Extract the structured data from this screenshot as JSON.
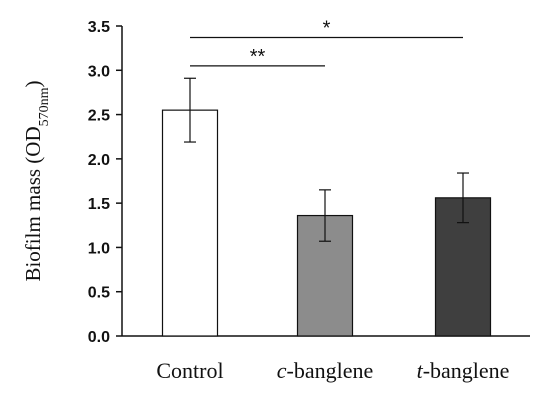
{
  "chart_data": {
    "type": "bar",
    "categories": [
      {
        "italic": "",
        "rest": "Control"
      },
      {
        "italic": "c",
        "rest": "-banglene"
      },
      {
        "italic": "t",
        "rest": "-banglene"
      }
    ],
    "values": [
      2.55,
      1.36,
      1.56
    ],
    "errors": [
      0.36,
      0.29,
      0.28
    ],
    "bar_colors": [
      "#ffffff",
      "#8c8c8c",
      "#3f3f3f"
    ],
    "ylabel": {
      "main": "Biofilm mass (OD",
      "sub": "570nm",
      "close": ")"
    },
    "ylim": [
      0,
      3.5
    ],
    "yticks": [
      "0.0",
      "0.5",
      "1.0",
      "1.5",
      "2.0",
      "2.5",
      "3.0",
      "3.5"
    ],
    "significance": [
      {
        "from": 0,
        "to": 1,
        "label": "**",
        "y": 3.05
      },
      {
        "from": 0,
        "to": 2,
        "label": "*",
        "y": 3.37
      }
    ]
  }
}
